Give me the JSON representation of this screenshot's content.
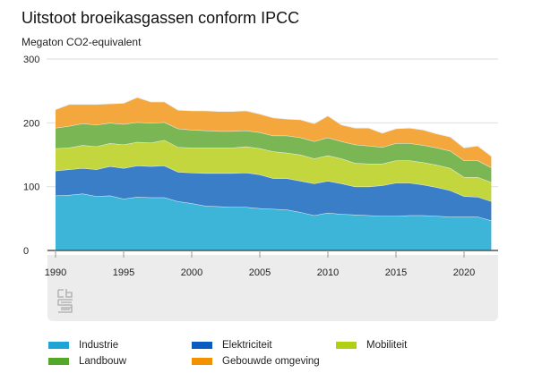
{
  "title": "Uitstoot broeikasgassen conform IPCC",
  "subtitle": "Megaton CO2-equivalent",
  "chart_data": {
    "type": "area",
    "stacked": true,
    "title": "Uitstoot broeikasgassen conform IPCC",
    "ylabel": "Megaton CO2-equivalent",
    "xlabel": "",
    "ylim": [
      0,
      300
    ],
    "yticks": [
      0,
      100,
      200,
      300
    ],
    "xticks": [
      1990,
      1995,
      2000,
      2005,
      2010,
      2015,
      2020
    ],
    "grid": true,
    "legend_position": "bottom",
    "x": [
      1990,
      1991,
      1992,
      1993,
      1994,
      1995,
      1996,
      1997,
      1998,
      1999,
      2000,
      2001,
      2002,
      2003,
      2004,
      2005,
      2006,
      2007,
      2008,
      2009,
      2010,
      2011,
      2012,
      2013,
      2014,
      2015,
      2016,
      2017,
      2018,
      2019,
      2020,
      2021,
      2022
    ],
    "series": [
      {
        "name": "Industrie",
        "color": "#3db5d8",
        "legend_color": "#1ea5d6",
        "values": [
          86,
          87,
          89,
          85,
          86,
          81,
          84,
          83,
          83,
          77,
          74,
          70,
          69,
          68,
          68,
          66,
          65,
          64,
          60,
          55,
          59,
          57,
          56,
          55,
          54,
          54,
          55,
          55,
          54,
          53,
          53,
          53,
          47
        ]
      },
      {
        "name": "Elektriciteit",
        "color": "#3a7ec8",
        "legend_color": "#0b5cbf",
        "values": [
          39,
          40,
          40,
          42,
          46,
          48,
          49,
          49,
          50,
          46,
          48,
          51,
          52,
          53,
          54,
          53,
          48,
          49,
          49,
          50,
          50,
          48,
          44,
          45,
          48,
          52,
          51,
          48,
          45,
          41,
          32,
          31,
          30
        ]
      },
      {
        "name": "Mobiliteit",
        "color": "#c3d63e",
        "legend_color": "#b3cf12",
        "values": [
          35,
          34,
          36,
          36,
          36,
          37,
          37,
          37,
          40,
          39,
          39,
          40,
          40,
          40,
          41,
          41,
          42,
          40,
          41,
          39,
          40,
          39,
          37,
          36,
          34,
          35,
          35,
          35,
          35,
          35,
          30,
          31,
          30
        ]
      },
      {
        "name": "Landbouw",
        "color": "#7ab653",
        "legend_color": "#53a82a",
        "values": [
          32,
          34,
          34,
          34,
          32,
          32,
          31,
          31,
          28,
          29,
          28,
          27,
          26,
          26,
          25,
          25,
          25,
          27,
          27,
          27,
          28,
          27,
          29,
          28,
          26,
          27,
          27,
          27,
          27,
          27,
          26,
          26,
          23
        ]
      },
      {
        "name": "Gebouwde omgeving",
        "color": "#f4a73c",
        "legend_color": "#f39200",
        "values": [
          29,
          34,
          30,
          32,
          30,
          33,
          39,
          33,
          32,
          29,
          30,
          31,
          31,
          31,
          31,
          29,
          28,
          26,
          28,
          28,
          34,
          26,
          26,
          28,
          22,
          23,
          24,
          24,
          22,
          22,
          20,
          23,
          18
        ]
      }
    ]
  },
  "logo_text": "cbs"
}
